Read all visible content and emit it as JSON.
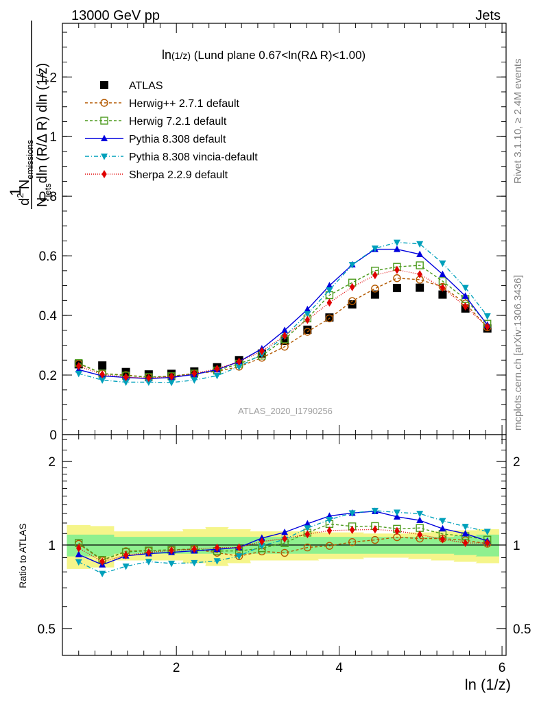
{
  "header": {
    "left": "13000 GeV pp",
    "right": "Jets"
  },
  "side_labels": {
    "rivet": "Rivet 3.1.10, ≥ 2.4M events",
    "mcplots": "mcplots.cern.ch [arXiv:1306.3436]"
  },
  "chart_data": [
    {
      "type": "line",
      "panel": "main",
      "title": "ln(1/z) (Lund plane 0.67<ln(RΔ R)<1.00)",
      "title_main": "ln",
      "title_sub": "(1/z)",
      "title_rest": " (Lund plane 0.67<ln(RΔ R)<1.00)",
      "ylabel_line1": "1",
      "ylabel_line2_parts": [
        "N",
        "jets",
        "dln (R/Δ R) dln (1/z)"
      ],
      "ylabel_numerator_parts": [
        "d",
        "2",
        " N",
        "emissions"
      ],
      "watermark": "ATLAS_2020_I1790256",
      "xlim": [
        0.6,
        6.05
      ],
      "ylim": [
        0,
        1.38
      ],
      "y_ticks": [
        0,
        0.2,
        0.4,
        0.6,
        0.8,
        1,
        1.2
      ],
      "y_tick_labels": [
        "0",
        "0.2",
        "0.4",
        "0.6",
        "0.8",
        "1",
        "1.2"
      ],
      "x": [
        0.8,
        1.09,
        1.38,
        1.66,
        1.94,
        2.22,
        2.5,
        2.77,
        3.05,
        3.33,
        3.61,
        3.88,
        4.16,
        4.44,
        4.71,
        4.99,
        5.27,
        5.55,
        5.82
      ],
      "series": [
        {
          "name": "ATLAS",
          "color": "#000000",
          "marker": "square-filled",
          "dash": "none",
          "values": [
            0.236,
            0.232,
            0.21,
            0.202,
            0.204,
            0.212,
            0.226,
            0.25,
            0.272,
            0.315,
            0.352,
            0.393,
            0.437,
            0.47,
            0.492,
            0.493,
            0.47,
            0.423,
            0.356
          ]
        },
        {
          "name": "Herwig++ 2.7.1 default",
          "color": "#b35900",
          "marker": "circle-open",
          "dash": "4,3",
          "values": [
            0.238,
            0.205,
            0.2,
            0.193,
            0.196,
            0.205,
            0.212,
            0.228,
            0.258,
            0.295,
            0.345,
            0.39,
            0.448,
            0.49,
            0.525,
            0.52,
            0.496,
            0.44,
            0.36
          ]
        },
        {
          "name": "Herwig 7.2.1 default",
          "color": "#4b9a1c",
          "marker": "square-open",
          "dash": "4,3",
          "values": [
            0.24,
            0.205,
            0.198,
            0.193,
            0.196,
            0.205,
            0.215,
            0.238,
            0.265,
            0.32,
            0.39,
            0.468,
            0.51,
            0.55,
            0.563,
            0.568,
            0.515,
            0.455,
            0.372
          ]
        },
        {
          "name": "Pythia 8.308 default",
          "color": "#0000dd",
          "marker": "triangle-up",
          "dash": "none",
          "values": [
            0.218,
            0.197,
            0.192,
            0.188,
            0.192,
            0.202,
            0.218,
            0.245,
            0.288,
            0.35,
            0.42,
            0.5,
            0.57,
            0.622,
            0.622,
            0.605,
            0.538,
            0.465,
            0.368
          ]
        },
        {
          "name": "Pythia 8.308 vincia-default",
          "color": "#00a0bb",
          "marker": "triangle-down",
          "dash": "6,3,1,3",
          "values": [
            0.205,
            0.183,
            0.176,
            0.176,
            0.175,
            0.183,
            0.198,
            0.228,
            0.27,
            0.33,
            0.405,
            0.485,
            0.57,
            0.625,
            0.645,
            0.64,
            0.575,
            0.493,
            0.398
          ]
        },
        {
          "name": "Sherpa 2.2.9 default",
          "color": "#e00000",
          "marker": "diamond",
          "dash": "1,2",
          "values": [
            0.23,
            0.202,
            0.193,
            0.19,
            0.195,
            0.205,
            0.221,
            0.245,
            0.28,
            0.332,
            0.385,
            0.443,
            0.495,
            0.535,
            0.553,
            0.538,
            0.493,
            0.43,
            0.362
          ]
        }
      ]
    },
    {
      "type": "line",
      "panel": "ratio",
      "ylabel": "Ratio to ATLAS",
      "xlabel": "ln (1/z)",
      "xlim": [
        0.6,
        6.05
      ],
      "ylim": [
        0.4,
        2.5
      ],
      "log_y": true,
      "x_ticks": [
        2,
        4,
        6
      ],
      "x_tick_labels": [
        "2",
        "4",
        "6"
      ],
      "y_ticks": [
        0.5,
        1,
        2
      ],
      "y_tick_labels": [
        "0.5",
        "1",
        "2"
      ],
      "x": [
        0.8,
        1.09,
        1.38,
        1.66,
        1.94,
        2.22,
        2.5,
        2.77,
        3.05,
        3.33,
        3.61,
        3.88,
        4.16,
        4.44,
        4.71,
        4.99,
        5.27,
        5.55,
        5.82
      ],
      "band_inner": [
        0.09,
        0.09,
        0.07,
        0.07,
        0.07,
        0.07,
        0.07,
        0.07,
        0.07,
        0.07,
        0.07,
        0.07,
        0.07,
        0.07,
        0.07,
        0.07,
        0.07,
        0.08,
        0.09
      ],
      "band_outer": [
        0.18,
        0.17,
        0.12,
        0.12,
        0.12,
        0.14,
        0.16,
        0.14,
        0.12,
        0.12,
        0.12,
        0.11,
        0.11,
        0.1,
        0.1,
        0.11,
        0.12,
        0.13,
        0.14
      ],
      "band_colors": {
        "inner": "#8ff08f",
        "outer": "#f5f58a"
      },
      "series": [
        {
          "name": "Herwig++ 2.7.1 default",
          "color": "#b35900",
          "marker": "circle-open",
          "dash": "4,3",
          "values": [
            1.01,
            0.88,
            0.95,
            0.955,
            0.96,
            0.967,
            0.938,
            0.912,
            0.948,
            0.937,
            0.98,
            0.993,
            1.025,
            1.043,
            1.067,
            1.055,
            1.055,
            1.04,
            1.011
          ]
        },
        {
          "name": "Herwig 7.2.1 default",
          "color": "#4b9a1c",
          "marker": "square-open",
          "dash": "4,3",
          "values": [
            1.017,
            0.884,
            0.943,
            0.955,
            0.961,
            0.967,
            0.951,
            0.952,
            0.974,
            1.016,
            1.108,
            1.191,
            1.167,
            1.17,
            1.144,
            1.152,
            1.096,
            1.076,
            1.045
          ]
        },
        {
          "name": "Pythia 8.308 default",
          "color": "#0000dd",
          "marker": "triangle-up",
          "dash": "none",
          "values": [
            0.924,
            0.849,
            0.914,
            0.931,
            0.941,
            0.953,
            0.965,
            0.98,
            1.059,
            1.111,
            1.193,
            1.272,
            1.304,
            1.323,
            1.264,
            1.227,
            1.145,
            1.099,
            1.034
          ]
        },
        {
          "name": "Pythia 8.308 vincia-default",
          "color": "#00a0bb",
          "marker": "triangle-down",
          "dash": "6,3,1,3",
          "values": [
            0.869,
            0.789,
            0.838,
            0.871,
            0.858,
            0.863,
            0.876,
            0.912,
            0.993,
            1.048,
            1.151,
            1.234,
            1.304,
            1.33,
            1.311,
            1.298,
            1.223,
            1.165,
            1.118
          ]
        },
        {
          "name": "Sherpa 2.2.9 default",
          "color": "#e00000",
          "marker": "diamond",
          "dash": "1,2",
          "values": [
            0.975,
            0.871,
            0.919,
            0.941,
            0.956,
            0.967,
            0.978,
            0.98,
            1.029,
            1.054,
            1.094,
            1.127,
            1.133,
            1.138,
            1.124,
            1.091,
            1.049,
            1.017,
            1.017
          ]
        }
      ]
    }
  ]
}
